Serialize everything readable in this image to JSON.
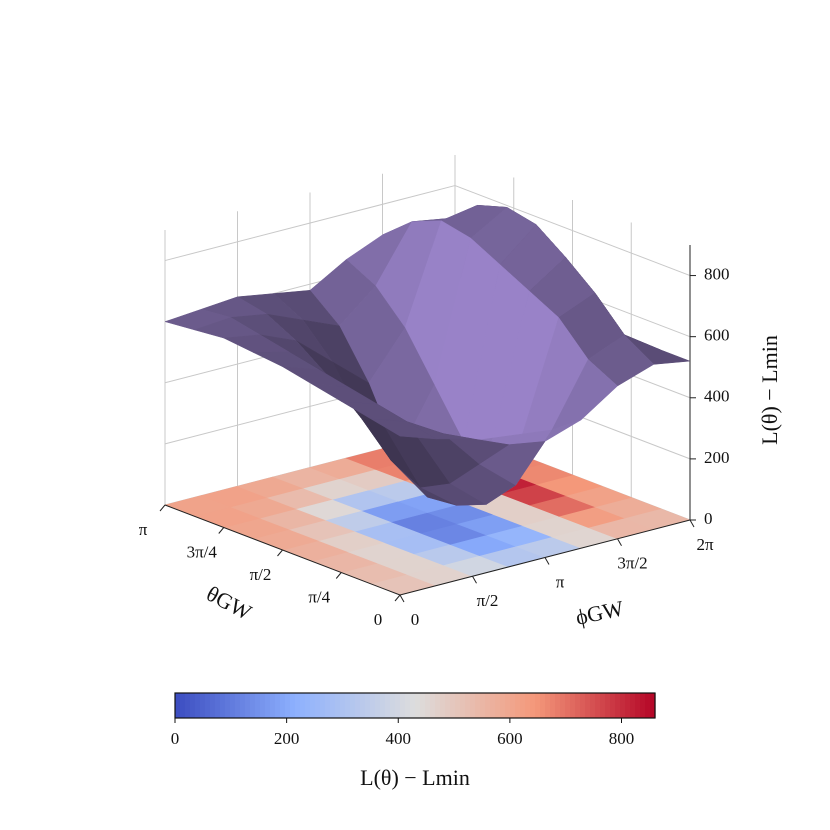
{
  "chart_data": {
    "type": "surface3d",
    "x_label": "θGW",
    "y_label": "ϕGW",
    "z_label": "L(θ) − Lmin",
    "colorbar_label": "L(θ) − Lmin",
    "theta": [
      0,
      0.3927,
      0.7854,
      1.1781,
      1.5708,
      1.9635,
      2.3562,
      2.7489,
      3.1416
    ],
    "phi": [
      0,
      0.7854,
      1.5708,
      2.3562,
      3.1416,
      3.927,
      4.7124,
      5.4978,
      6.2832
    ],
    "z": [
      [
        520,
        480,
        450,
        400,
        380,
        420,
        500,
        540,
        520
      ],
      [
        540,
        500,
        430,
        300,
        200,
        350,
        550,
        600,
        520
      ],
      [
        560,
        520,
        400,
        200,
        100,
        300,
        650,
        700,
        500
      ],
      [
        580,
        540,
        380,
        150,
        60,
        250,
        700,
        780,
        480
      ],
      [
        600,
        560,
        420,
        200,
        50,
        200,
        750,
        850,
        470
      ],
      [
        610,
        580,
        480,
        300,
        150,
        350,
        800,
        870,
        480
      ],
      [
        620,
        600,
        550,
        450,
        350,
        500,
        820,
        840,
        500
      ],
      [
        610,
        620,
        600,
        550,
        500,
        600,
        780,
        760,
        520
      ],
      [
        600,
        610,
        620,
        600,
        580,
        650,
        700,
        680,
        500
      ]
    ],
    "xlim": [
      0,
      3.1416
    ],
    "xticks": [
      0,
      {
        "value": 0.7854,
        "label": "π/4"
      },
      {
        "value": 1.5708,
        "label": "π/2"
      },
      {
        "value": 2.3562,
        "label": "3π/4"
      },
      {
        "value": 3.1416,
        "label": "π"
      }
    ],
    "ylim": [
      0,
      6.2832
    ],
    "yticks": [
      0,
      {
        "value": 1.5708,
        "label": "π/2"
      },
      {
        "value": 3.1416,
        "label": "π"
      },
      {
        "value": 4.7124,
        "label": "3π/2"
      },
      {
        "value": 6.2832,
        "label": "2π"
      }
    ],
    "zlim": [
      0,
      900
    ],
    "zticks": [
      0,
      200,
      400,
      600,
      800
    ],
    "clim": [
      0,
      860
    ],
    "cticks": [
      0,
      200,
      400,
      600,
      800
    ],
    "surface_color": "#7a68a0",
    "colormap": "coolwarm",
    "grid": true
  }
}
